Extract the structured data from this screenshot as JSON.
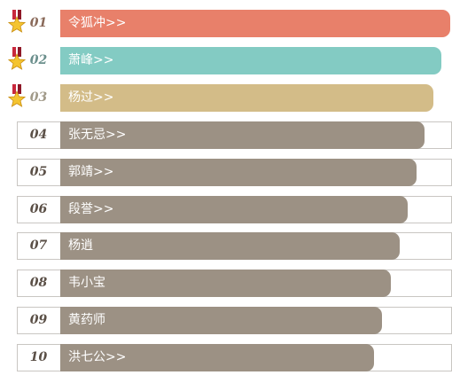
{
  "ranking": {
    "items": [
      {
        "rank": "01",
        "name": "令狐冲>>",
        "color": "#e8806a",
        "num_color": "#8a6a5a",
        "fill": 1.0,
        "medal": true
      },
      {
        "rank": "02",
        "name": "萧峰>>",
        "color": "#83cbc3",
        "num_color": "#6b8f8c",
        "fill": 0.978,
        "medal": true
      },
      {
        "rank": "03",
        "name": "杨过>>",
        "color": "#d3bc88",
        "num_color": "#a09988",
        "fill": 0.956,
        "medal": true
      },
      {
        "rank": "04",
        "name": "张无忌>>",
        "color": "#9c9184",
        "num_color": "#5a4f46",
        "fill": 0.935,
        "medal": false
      },
      {
        "rank": "05",
        "name": "郭靖>>",
        "color": "#9c9184",
        "num_color": "#5a4f46",
        "fill": 0.913,
        "medal": false
      },
      {
        "rank": "06",
        "name": "段誉>>",
        "color": "#9c9184",
        "num_color": "#5a4f46",
        "fill": 0.891,
        "medal": false
      },
      {
        "rank": "07",
        "name": "杨逍",
        "color": "#9c9184",
        "num_color": "#5a4f46",
        "fill": 0.87,
        "medal": false
      },
      {
        "rank": "08",
        "name": "韦小宝",
        "color": "#9c9184",
        "num_color": "#5a4f46",
        "fill": 0.848,
        "medal": false
      },
      {
        "rank": "09",
        "name": "黄药师",
        "color": "#9c9184",
        "num_color": "#5a4f46",
        "fill": 0.826,
        "medal": false
      },
      {
        "rank": "10",
        "name": "洪七公>>",
        "color": "#9c9184",
        "num_color": "#5a4f46",
        "fill": 0.804,
        "medal": false
      }
    ],
    "medal_icon": "medal-icon",
    "medal_colors": {
      "ribbon": "#c8283c",
      "ribbon_dark": "#8f1828",
      "star": "#f4c430",
      "star_edge": "#c98e10"
    }
  }
}
